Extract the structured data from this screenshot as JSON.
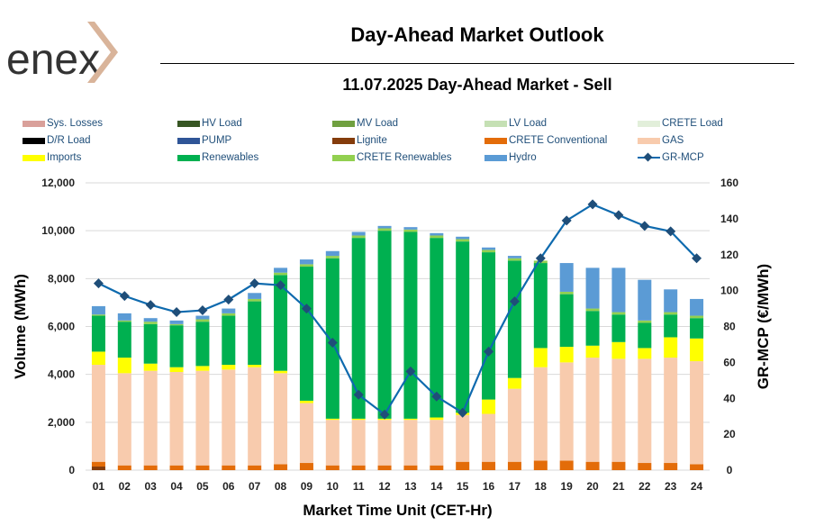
{
  "header": {
    "logo_text": "enex",
    "title": "Day-Ahead Market Outlook",
    "subtitle": "11.07.2025  Day-Ahead Market - Sell"
  },
  "legend": [
    {
      "name": "Sys. Losses",
      "color": "#d9a09a"
    },
    {
      "name": "HV Load",
      "color": "#375623"
    },
    {
      "name": "MV Load",
      "color": "#70a040"
    },
    {
      "name": "LV Load",
      "color": "#c5e0b4"
    },
    {
      "name": "CRETE Load",
      "color": "#e2efda"
    },
    {
      "name": "D/R Load",
      "color": "#000000"
    },
    {
      "name": "PUMP",
      "color": "#2f5597"
    },
    {
      "name": "Lignite",
      "color": "#843c0c"
    },
    {
      "name": "CRETE Conventional",
      "color": "#e36c09"
    },
    {
      "name": "GAS",
      "color": "#f8cbad"
    },
    {
      "name": "Imports",
      "color": "#ffff00"
    },
    {
      "name": "Renewables",
      "color": "#00b050"
    },
    {
      "name": "CRETE Renewables",
      "color": "#92d050"
    },
    {
      "name": "Hydro",
      "color": "#5b9bd5"
    },
    {
      "name": "GR-MCP",
      "color": "#1f4e79",
      "line": true
    }
  ],
  "chart_data": {
    "type": "bar",
    "stacked": true,
    "xlabel": "Market Time Unit (CET-Hr)",
    "ylabel": "Volume (MWh)",
    "ylabel2": "GR-MCP (€/MWh)",
    "ylim": [
      0,
      12000
    ],
    "y2lim": [
      0,
      160
    ],
    "yticks": [
      "0",
      "2,000",
      "4,000",
      "6,000",
      "8,000",
      "10,000",
      "12,000"
    ],
    "y2ticks": [
      "0",
      "20",
      "40",
      "60",
      "80",
      "100",
      "120",
      "140",
      "160"
    ],
    "categories": [
      "01",
      "02",
      "03",
      "04",
      "05",
      "06",
      "07",
      "08",
      "09",
      "10",
      "11",
      "12",
      "13",
      "14",
      "15",
      "16",
      "17",
      "18",
      "19",
      "20",
      "21",
      "22",
      "23",
      "24"
    ],
    "series": [
      {
        "name": "Sys. Losses",
        "color": "#d9a09a",
        "values": [
          0,
          0,
          0,
          0,
          0,
          0,
          0,
          0,
          0,
          0,
          0,
          0,
          0,
          0,
          0,
          0,
          0,
          0,
          0,
          0,
          0,
          0,
          0,
          0
        ]
      },
      {
        "name": "HV Load",
        "color": "#375623",
        "values": [
          0,
          0,
          0,
          0,
          0,
          0,
          0,
          0,
          0,
          0,
          0,
          0,
          0,
          0,
          0,
          0,
          0,
          0,
          0,
          0,
          0,
          0,
          0,
          0
        ]
      },
      {
        "name": "MV Load",
        "color": "#70a040",
        "values": [
          0,
          0,
          0,
          0,
          0,
          0,
          0,
          0,
          0,
          0,
          0,
          0,
          0,
          0,
          0,
          0,
          0,
          0,
          0,
          0,
          0,
          0,
          0,
          0
        ]
      },
      {
        "name": "LV Load",
        "color": "#c5e0b4",
        "values": [
          0,
          0,
          0,
          0,
          0,
          0,
          0,
          0,
          0,
          0,
          0,
          0,
          0,
          0,
          0,
          0,
          0,
          0,
          0,
          0,
          0,
          0,
          0,
          0
        ]
      },
      {
        "name": "CRETE Load",
        "color": "#e2efda",
        "values": [
          0,
          0,
          0,
          0,
          0,
          0,
          0,
          0,
          0,
          0,
          0,
          0,
          0,
          0,
          0,
          0,
          0,
          0,
          0,
          0,
          0,
          0,
          0,
          0
        ]
      },
      {
        "name": "D/R Load",
        "color": "#000000",
        "values": [
          0,
          0,
          0,
          0,
          0,
          0,
          0,
          0,
          0,
          0,
          0,
          0,
          0,
          0,
          0,
          0,
          0,
          0,
          0,
          0,
          0,
          0,
          0,
          0
        ]
      },
      {
        "name": "PUMP",
        "color": "#2f5597",
        "values": [
          0,
          0,
          0,
          0,
          0,
          0,
          0,
          0,
          0,
          0,
          0,
          0,
          0,
          0,
          0,
          0,
          0,
          0,
          0,
          0,
          0,
          0,
          0,
          0
        ]
      },
      {
        "name": "Lignite",
        "color": "#843c0c",
        "values": [
          150,
          0,
          0,
          0,
          0,
          0,
          0,
          0,
          0,
          0,
          0,
          0,
          0,
          0,
          0,
          0,
          0,
          0,
          0,
          0,
          0,
          0,
          0,
          0
        ]
      },
      {
        "name": "CRETE Conventional",
        "color": "#e36c09",
        "values": [
          200,
          200,
          200,
          200,
          200,
          200,
          200,
          250,
          300,
          200,
          200,
          200,
          200,
          200,
          350,
          350,
          350,
          400,
          400,
          350,
          350,
          300,
          300,
          250
        ]
      },
      {
        "name": "GAS",
        "color": "#f8cbad",
        "values": [
          4050,
          3850,
          3950,
          3900,
          3950,
          4000,
          4100,
          3800,
          2500,
          1900,
          1900,
          1900,
          1900,
          1900,
          1950,
          2000,
          3050,
          3900,
          4100,
          4350,
          4300,
          4350,
          4400,
          4300
        ]
      },
      {
        "name": "Imports",
        "color": "#ffff00",
        "values": [
          550,
          650,
          300,
          200,
          200,
          200,
          100,
          100,
          100,
          50,
          50,
          50,
          50,
          100,
          100,
          600,
          450,
          800,
          650,
          500,
          700,
          450,
          850,
          950
        ]
      },
      {
        "name": "Renewables",
        "color": "#00b050",
        "values": [
          1500,
          1500,
          1650,
          1750,
          1850,
          2050,
          2650,
          4000,
          5600,
          6700,
          7550,
          7850,
          7800,
          7500,
          7150,
          6150,
          4900,
          3550,
          2200,
          1450,
          1150,
          1050,
          950,
          850
        ]
      },
      {
        "name": "CRETE Renewables",
        "color": "#92d050",
        "values": [
          50,
          50,
          100,
          50,
          100,
          100,
          100,
          100,
          100,
          100,
          100,
          100,
          100,
          100,
          100,
          100,
          100,
          100,
          100,
          100,
          100,
          100,
          100,
          100
        ]
      },
      {
        "name": "Hydro",
        "color": "#5b9bd5",
        "values": [
          350,
          300,
          150,
          150,
          150,
          200,
          250,
          200,
          200,
          200,
          150,
          100,
          100,
          100,
          100,
          100,
          100,
          0,
          1200,
          1700,
          1850,
          1700,
          950,
          700
        ]
      }
    ],
    "line": {
      "name": "GR-MCP",
      "axis": "secondary",
      "color": "#0e6aae",
      "marker_color": "#1f4e79",
      "values": [
        104,
        97,
        92,
        88,
        89,
        95,
        104,
        103,
        90,
        71,
        42,
        31,
        55,
        41,
        32,
        66,
        94,
        118,
        139,
        148,
        142,
        136,
        133,
        118
      ]
    }
  }
}
